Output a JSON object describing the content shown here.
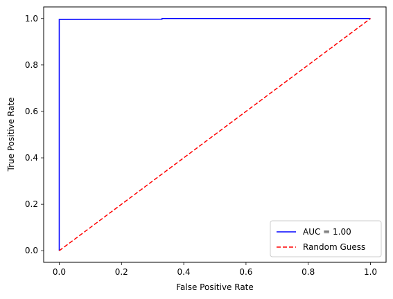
{
  "chart_data": {
    "type": "line",
    "title": "",
    "xlabel": "False Positive Rate",
    "ylabel": "True Positive Rate",
    "xlim": [
      -0.05,
      1.05
    ],
    "ylim": [
      -0.05,
      1.05
    ],
    "xticks": [
      "0.0",
      "0.2",
      "0.4",
      "0.6",
      "0.8",
      "1.0"
    ],
    "yticks": [
      "0.0",
      "0.2",
      "0.4",
      "0.6",
      "0.8",
      "1.0"
    ],
    "grid": false,
    "legend_position": "lower-right",
    "series": [
      {
        "name": "AUC = 1.00",
        "color": "#0000ff",
        "style": "solid",
        "x": [
          0.0,
          0.0,
          0.0,
          0.0,
          0.33,
          0.33,
          1.0
        ],
        "y": [
          0.0,
          0.98,
          0.995,
          0.996,
          0.997,
          1.0,
          1.0
        ]
      },
      {
        "name": "Random Guess",
        "color": "#ff0000",
        "style": "dashed",
        "x": [
          0.0,
          1.0
        ],
        "y": [
          0.0,
          1.0
        ]
      }
    ]
  }
}
